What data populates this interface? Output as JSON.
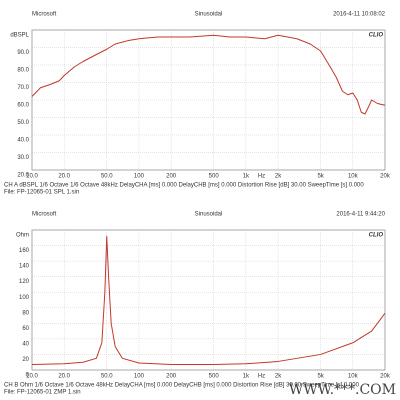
{
  "chart_data": [
    {
      "type": "line",
      "header": {
        "left": "Microsoft",
        "center": "Sinusoidal",
        "right": "2016-4-11 10:08:02"
      },
      "brand": "CLIO",
      "x": [
        10,
        12,
        15,
        18,
        20,
        25,
        30,
        40,
        50,
        60,
        80,
        100,
        150,
        200,
        300,
        500,
        700,
        1000,
        1500,
        2000,
        3000,
        4000,
        5000,
        6000,
        7000,
        8000,
        9000,
        10000,
        11000,
        12000,
        13000,
        14000,
        15000,
        17000,
        20000
      ],
      "values": [
        62,
        67,
        69,
        71,
        74,
        79,
        82,
        86,
        89,
        92,
        94,
        95,
        96,
        96,
        96,
        97,
        96,
        96,
        95,
        97,
        95,
        92,
        88,
        80,
        73,
        65,
        63,
        64,
        60,
        53,
        52,
        56,
        60,
        58,
        57
      ],
      "color": "#c0392b",
      "log_x": true,
      "grid": true,
      "xlim": [
        10,
        20000
      ],
      "xticks": [
        {
          "value": 10,
          "label": "10.0"
        },
        {
          "value": 20,
          "label": "20.0"
        },
        {
          "value": 50,
          "label": "50.0"
        },
        100,
        200,
        500,
        {
          "value": 1000,
          "label": "1k"
        },
        {
          "value": 2000,
          "label": "2k"
        },
        {
          "value": 5000,
          "label": "5k"
        },
        {
          "value": 10000,
          "label": "10k"
        },
        {
          "value": 20000,
          "label": "20k"
        }
      ],
      "x_label": "Hz",
      "ylim": [
        20,
        100
      ],
      "yticks": [
        {
          "value": 20,
          "label": "20.0"
        },
        {
          "value": 30,
          "label": "30.0"
        },
        {
          "value": 40,
          "label": "40.0"
        },
        {
          "value": 50,
          "label": "50.0"
        },
        {
          "value": 60,
          "label": "60.0"
        },
        {
          "value": 70,
          "label": "70.0"
        },
        {
          "value": 80,
          "label": "80.0"
        },
        {
          "value": 90,
          "label": "90.0"
        },
        {
          "value": 100,
          "label": "dBSPL"
        }
      ],
      "info": [
        "CH A   dBSPL   1/6 Octave   1/6 Octave   48kHz   DelayCHA [ms] 0.000   DelayCHB [ms] 0.000   Distortion Rise [dB] 30.00   SweepTime [s] 0.000",
        "File: FP-12065-01 SPL 1.sin"
      ]
    },
    {
      "type": "line",
      "header": {
        "left": "Microsoft",
        "center": "Sinusoidal",
        "right": "2016-4-11 9:44:20"
      },
      "brand": "CLIO",
      "x": [
        10,
        20,
        30,
        40,
        45,
        48,
        50,
        52,
        55,
        60,
        70,
        100,
        200,
        500,
        1000,
        2000,
        5000,
        10000,
        15000,
        20000
      ],
      "values": [
        7,
        8,
        10,
        15,
        35,
        100,
        172,
        120,
        60,
        30,
        15,
        9,
        7,
        7,
        8,
        11,
        20,
        35,
        50,
        73
      ],
      "color": "#c0392b",
      "log_x": true,
      "grid": true,
      "xlim": [
        10,
        20000
      ],
      "xticks": [
        {
          "value": 10,
          "label": "10.0"
        },
        {
          "value": 20,
          "label": "20.0"
        },
        {
          "value": 50,
          "label": "50.0"
        },
        100,
        200,
        500,
        {
          "value": 1000,
          "label": "1k"
        },
        {
          "value": 2000,
          "label": "2k"
        },
        {
          "value": 5000,
          "label": "5k"
        },
        {
          "value": 10000,
          "label": "10k"
        },
        {
          "value": 20000,
          "label": "20k"
        }
      ],
      "x_label": "Hz",
      "ylim": [
        0,
        180
      ],
      "yticks": [
        0,
        20,
        40,
        60,
        80,
        100,
        120,
        140,
        160,
        {
          "value": 180,
          "label": "Ohm"
        }
      ],
      "info": [
        "CH B   Ohm   1/6 Octave   1/6 Octave   48kHz   DelayCHA [ms] 0.000   DelayCHB [ms] 0.000   Distortion Rise [dB] 30.00   SweepTime [s] 0.000",
        "File: FP-12065-01 ZMP 1.sin"
      ]
    }
  ],
  "watermark": "WWW.***.COM"
}
